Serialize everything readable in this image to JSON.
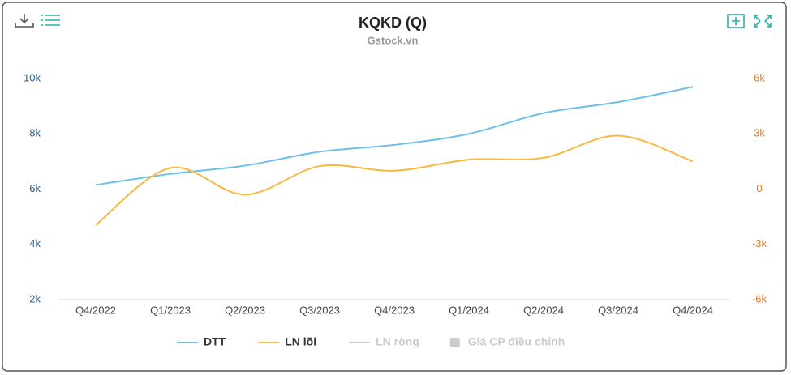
{
  "chart_data": {
    "type": "line",
    "title": "KQKD (Q)",
    "subtitle": "Gstock.vn",
    "categories": [
      "Q4/2022",
      "Q1/2023",
      "Q2/2023",
      "Q3/2023",
      "Q4/2023",
      "Q1/2024",
      "Q2/2024",
      "Q3/2024",
      "Q4/2024"
    ],
    "series": [
      {
        "name": "DTT",
        "color": "#6ec1e4",
        "values": [
          6150,
          6550,
          6850,
          7350,
          7600,
          8000,
          8750,
          9150,
          9700
        ]
      },
      {
        "name": "LN lõi",
        "color": "#f9b840",
        "axis": "y2",
        "values": [
          -1950,
          1150,
          -300,
          1250,
          1000,
          1600,
          1700,
          2900,
          1500
        ]
      }
    ],
    "legend_inactive": [
      "LN ròng",
      "Giá CP điều chỉnh"
    ],
    "ylim": [
      2000,
      10000
    ],
    "yticks": [
      {
        "value": 2000,
        "label": "2k"
      },
      {
        "value": 4000,
        "label": "4k"
      },
      {
        "value": 6000,
        "label": "6k"
      },
      {
        "value": 8000,
        "label": "8k"
      },
      {
        "value": 10000,
        "label": "10k"
      }
    ],
    "y2lim": [
      -6000,
      6000
    ],
    "y2ticks": [
      {
        "value": -6000,
        "label": "-6k"
      },
      {
        "value": -3000,
        "label": "-3k"
      },
      {
        "value": 0,
        "label": "0"
      },
      {
        "value": 3000,
        "label": "3k"
      },
      {
        "value": 6000,
        "label": "6k"
      }
    ],
    "grid": false,
    "legend": "bottom"
  }
}
